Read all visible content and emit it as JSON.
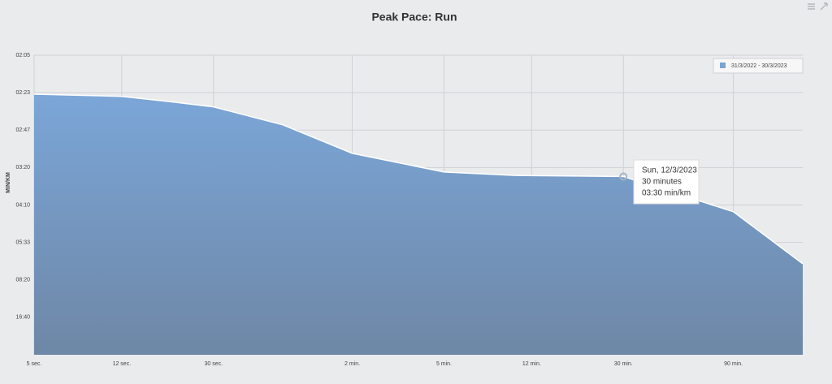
{
  "chart_data": {
    "type": "area",
    "title": "Peak Pace: Run",
    "y_label": "MIN/KM",
    "xscale": "log",
    "xlim": [
      5,
      10800
    ],
    "xticks": [
      {
        "value": 5,
        "label": "5 sec."
      },
      {
        "value": 12,
        "label": "12 sec."
      },
      {
        "value": 30,
        "label": "30 sec."
      },
      {
        "value": 120,
        "label": "2 min."
      },
      {
        "value": 300,
        "label": "5 min."
      },
      {
        "value": 720,
        "label": "12 min."
      },
      {
        "value": 1800,
        "label": "30 min."
      },
      {
        "value": 5400,
        "label": "90 min."
      }
    ],
    "ylim": [
      0,
      8
    ],
    "yticks": [
      {
        "value": 1,
        "label": "16:40"
      },
      {
        "value": 2,
        "label": "08:20"
      },
      {
        "value": 3,
        "label": "05:33"
      },
      {
        "value": 4,
        "label": "04:10"
      },
      {
        "value": 5,
        "label": "03:20"
      },
      {
        "value": 6,
        "label": "02:47"
      },
      {
        "value": 7,
        "label": "02:23"
      },
      {
        "value": 8,
        "label": "02:05"
      }
    ],
    "grid": true,
    "legend": "top-right",
    "x": [
      5,
      12,
      20,
      30,
      60,
      120,
      300,
      600,
      1800,
      5400,
      10800
    ],
    "series": [
      {
        "name": "31/3/2022 - 30/3/2023",
        "color": "#7ba3d4",
        "values": [
          6.96,
          6.9,
          6.75,
          6.62,
          6.14,
          5.38,
          4.88,
          4.79,
          4.76,
          3.82,
          2.43
        ]
      }
    ],
    "tooltip": [
      "Sun, 12/3/2023",
      "30 minutes",
      "03:30 min/km"
    ]
  }
}
